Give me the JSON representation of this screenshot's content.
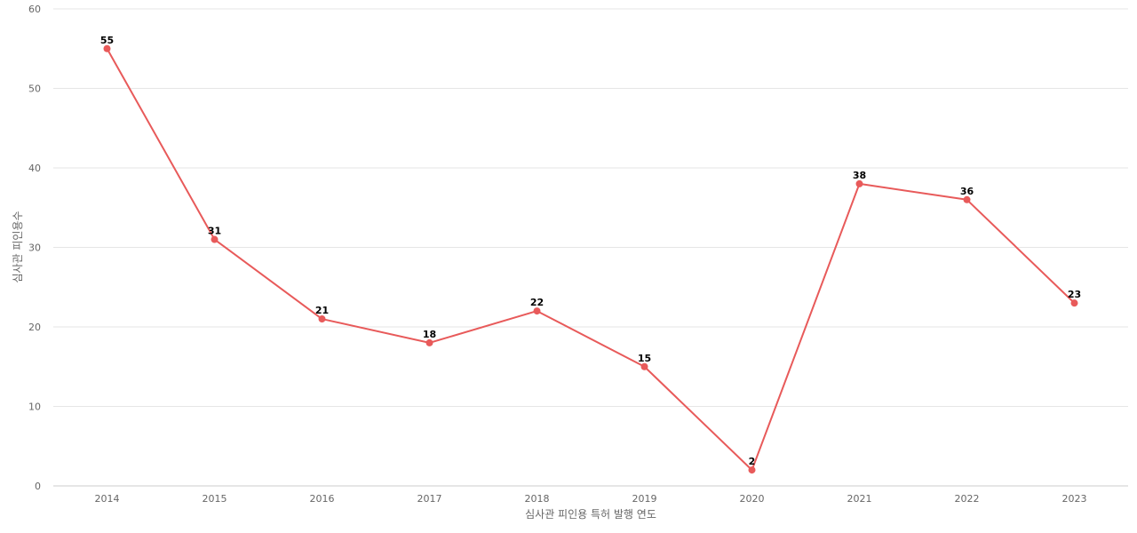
{
  "chart_data": {
    "type": "line",
    "title": "",
    "xlabel": "심사관 피인용 특허 발행 연도",
    "ylabel": "심사관 피인용수",
    "categories": [
      "2014",
      "2015",
      "2016",
      "2017",
      "2018",
      "2019",
      "2020",
      "2021",
      "2022",
      "2023"
    ],
    "series": [
      {
        "values": [
          55,
          31,
          21,
          18,
          22,
          15,
          2,
          38,
          36,
          23
        ],
        "color": "#e85a5a"
      }
    ],
    "ylim": [
      0,
      60
    ],
    "yticks": [
      0,
      10,
      20,
      30,
      40,
      50,
      60
    ],
    "grid": true,
    "legend": "none",
    "data_labels": true
  }
}
